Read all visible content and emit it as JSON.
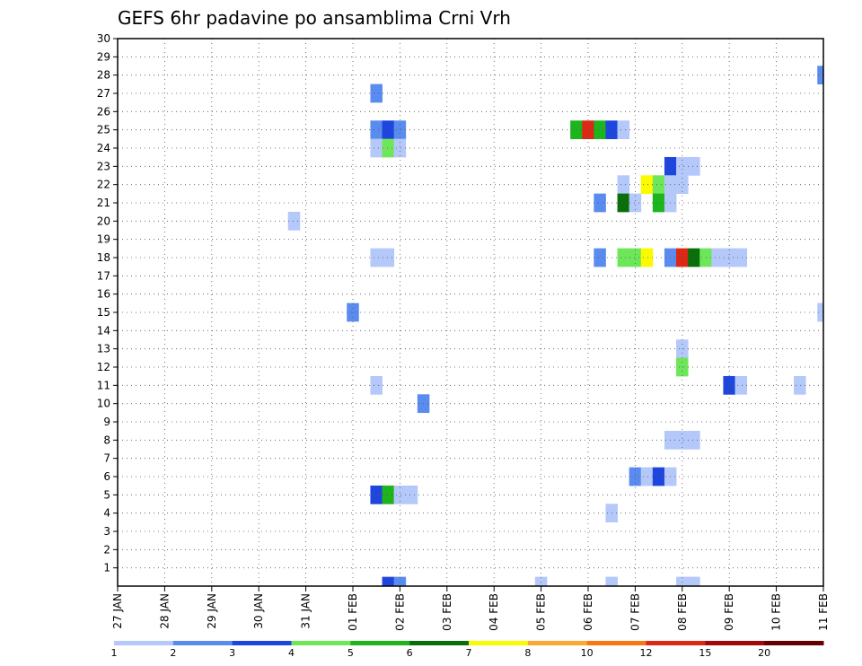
{
  "chart_data": {
    "type": "heatmap",
    "title": "GEFS 6hr padavine po ansamblima Crni Vrh",
    "xlabel": "",
    "ylabel": "",
    "x_axis": {
      "unit": "6-hour steps from 27 JAN 00Z",
      "range": [
        0,
        60
      ],
      "ticks": [
        {
          "step": 0,
          "label": "27 JAN"
        },
        {
          "step": 4,
          "label": "28 JAN"
        },
        {
          "step": 8,
          "label": "29 JAN"
        },
        {
          "step": 12,
          "label": "30 JAN"
        },
        {
          "step": 16,
          "label": "31 JAN"
        },
        {
          "step": 20,
          "label": "01 FEB"
        },
        {
          "step": 24,
          "label": "02 FEB"
        },
        {
          "step": 28,
          "label": "03 FEB"
        },
        {
          "step": 32,
          "label": "04 FEB"
        },
        {
          "step": 36,
          "label": "05 FEB"
        },
        {
          "step": 40,
          "label": "06 FEB"
        },
        {
          "step": 44,
          "label": "07 FEB"
        },
        {
          "step": 48,
          "label": "08 FEB"
        },
        {
          "step": 52,
          "label": "09 FEB"
        },
        {
          "step": 56,
          "label": "10 FEB"
        },
        {
          "step": 60,
          "label": "11 FEB"
        }
      ]
    },
    "y_axis": {
      "range": [
        0,
        30
      ],
      "ticks": [
        1,
        2,
        3,
        4,
        5,
        6,
        7,
        8,
        9,
        10,
        11,
        12,
        13,
        14,
        15,
        16,
        17,
        18,
        19,
        20,
        21,
        22,
        23,
        24,
        25,
        26,
        27,
        28,
        29,
        30
      ]
    },
    "grid": true,
    "colorbar": {
      "placement": "bottom",
      "colors": [
        "#b4c8fa",
        "#5a8cf0",
        "#1e46dc",
        "#6ee65a",
        "#1eb41e",
        "#0a6e0a",
        "#fafa00",
        "#faaa32",
        "#fa7814",
        "#dc2814",
        "#a00a0a",
        "#640000"
      ],
      "labels": [
        "1",
        "2",
        "3",
        "4",
        "5",
        "6",
        "7",
        "8",
        "10",
        "12",
        "15",
        "20"
      ]
    },
    "cells": [
      [
        22,
        27,
        2
      ],
      [
        22,
        25,
        2
      ],
      [
        23,
        25,
        3
      ],
      [
        24,
        25,
        2
      ],
      [
        22,
        24,
        1
      ],
      [
        23,
        24,
        4
      ],
      [
        24,
        24,
        1
      ],
      [
        22,
        18,
        1
      ],
      [
        23,
        18,
        1
      ],
      [
        22,
        11,
        1
      ],
      [
        22,
        5,
        3
      ],
      [
        23,
        5,
        5
      ],
      [
        24,
        5,
        1
      ],
      [
        25,
        5,
        1
      ],
      [
        23,
        0,
        3
      ],
      [
        24,
        0,
        2
      ],
      [
        15,
        20,
        1
      ],
      [
        20,
        15,
        2
      ],
      [
        26,
        10,
        2
      ],
      [
        36,
        0,
        1
      ],
      [
        39,
        25,
        5
      ],
      [
        40,
        25,
        10
      ],
      [
        41,
        25,
        5
      ],
      [
        42,
        25,
        3
      ],
      [
        43,
        25,
        1
      ],
      [
        47,
        23,
        3
      ],
      [
        48,
        23,
        1
      ],
      [
        49,
        23,
        1
      ],
      [
        43,
        22,
        1
      ],
      [
        45,
        22,
        7
      ],
      [
        46,
        22,
        4
      ],
      [
        47,
        22,
        1
      ],
      [
        48,
        22,
        1
      ],
      [
        41,
        21,
        2
      ],
      [
        43,
        21,
        6
      ],
      [
        44,
        21,
        1
      ],
      [
        46,
        21,
        5
      ],
      [
        47,
        21,
        1
      ],
      [
        41,
        18,
        2
      ],
      [
        43,
        18,
        4
      ],
      [
        44,
        18,
        4
      ],
      [
        45,
        18,
        7
      ],
      [
        47,
        18,
        2
      ],
      [
        48,
        18,
        10
      ],
      [
        49,
        18,
        6
      ],
      [
        50,
        18,
        4
      ],
      [
        51,
        18,
        1
      ],
      [
        52,
        18,
        1
      ],
      [
        53,
        18,
        1
      ],
      [
        48,
        13,
        1
      ],
      [
        48,
        12,
        4
      ],
      [
        52,
        11,
        3
      ],
      [
        53,
        11,
        1
      ],
      [
        58,
        11,
        1
      ],
      [
        47,
        8,
        1
      ],
      [
        48,
        8,
        1
      ],
      [
        49,
        8,
        1
      ],
      [
        44,
        6,
        2
      ],
      [
        45,
        6,
        1
      ],
      [
        46,
        6,
        3
      ],
      [
        47,
        6,
        1
      ],
      [
        42,
        4,
        1
      ],
      [
        42,
        0,
        1
      ],
      [
        48,
        0,
        1
      ],
      [
        49,
        0,
        1
      ],
      [
        60,
        28,
        2
      ],
      [
        60,
        15,
        1
      ]
    ]
  }
}
